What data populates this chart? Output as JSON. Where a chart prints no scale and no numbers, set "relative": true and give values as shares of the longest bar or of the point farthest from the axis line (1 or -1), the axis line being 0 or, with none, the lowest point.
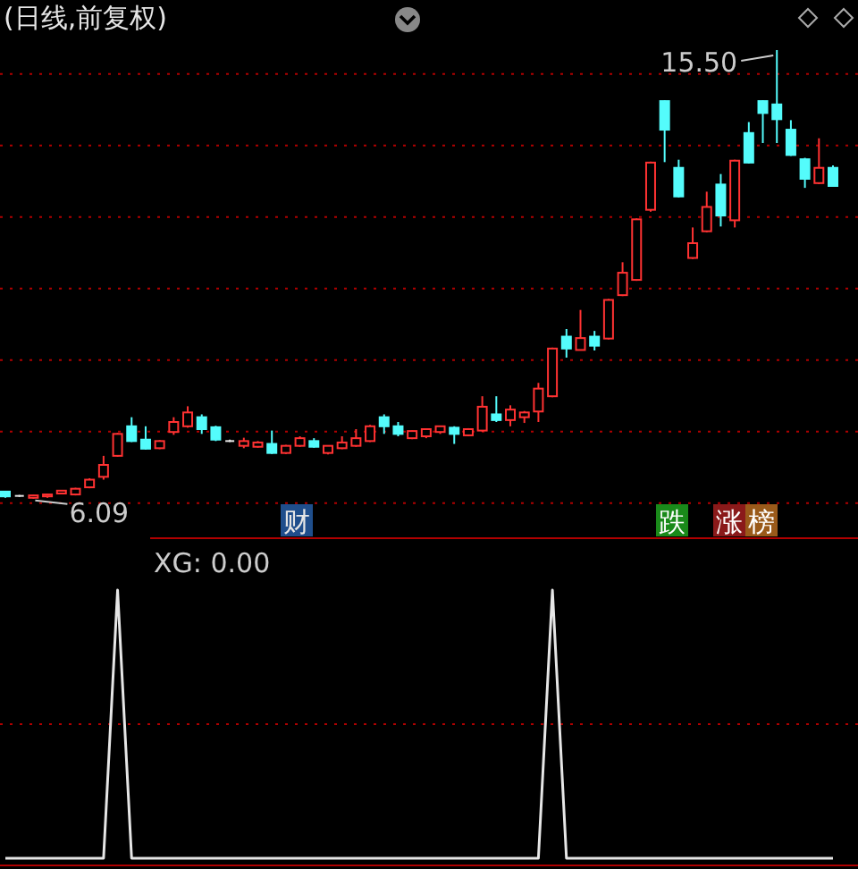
{
  "chart_data": [
    {
      "type": "candlestick",
      "title": "(日线,前复权)",
      "grid": true,
      "ylim": [
        5.3,
        16.55
      ],
      "yticks": [
        {
          "value": 15,
          "label": null
        },
        {
          "value": 13.5,
          "label": null
        },
        {
          "value": 12,
          "label": null
        },
        {
          "value": 10.5,
          "label": null
        },
        {
          "value": 9,
          "label": null
        },
        {
          "value": 7.5,
          "label": null
        },
        {
          "value": 6,
          "label": null
        }
      ],
      "categories": [
        null,
        null,
        null,
        null,
        null,
        null,
        null,
        null,
        null,
        null,
        null,
        null,
        null,
        null,
        null,
        null,
        null,
        null,
        null,
        null,
        null,
        null,
        null,
        null,
        null,
        null,
        null,
        null,
        null,
        null,
        null,
        null,
        null,
        null,
        null,
        null,
        null,
        null,
        null,
        null,
        null,
        null,
        null,
        null,
        null,
        null,
        null,
        null,
        null,
        null,
        null,
        null,
        null,
        null,
        null,
        null,
        null,
        null,
        null,
        null
      ],
      "ohlc": [
        [
          6.24,
          6.25,
          6.11,
          6.14
        ],
        [
          6.15,
          6.17,
          6.13,
          6.15
        ],
        [
          6.11,
          6.17,
          6.09,
          6.16
        ],
        [
          6.14,
          6.19,
          6.11,
          6.18
        ],
        [
          6.2,
          6.27,
          6.19,
          6.26
        ],
        [
          6.18,
          6.32,
          6.16,
          6.3
        ],
        [
          6.33,
          6.52,
          6.31,
          6.49
        ],
        [
          6.55,
          6.99,
          6.49,
          6.8
        ],
        [
          6.99,
          7.47,
          6.97,
          7.45
        ],
        [
          7.61,
          7.8,
          7.28,
          7.3
        ],
        [
          7.33,
          7.61,
          7.12,
          7.14
        ],
        [
          7.15,
          7.32,
          7.13,
          7.3
        ],
        [
          7.49,
          7.8,
          7.43,
          7.7
        ],
        [
          7.61,
          8.03,
          7.58,
          7.9
        ],
        [
          7.8,
          7.86,
          7.45,
          7.55
        ],
        [
          7.59,
          7.62,
          7.3,
          7.33
        ],
        [
          7.3,
          7.33,
          7.28,
          7.3
        ],
        [
          7.2,
          7.37,
          7.15,
          7.3
        ],
        [
          7.18,
          7.3,
          7.16,
          7.27
        ],
        [
          7.24,
          7.52,
          7.03,
          7.05
        ],
        [
          7.05,
          7.22,
          7.03,
          7.2
        ],
        [
          7.2,
          7.4,
          7.18,
          7.36
        ],
        [
          7.3,
          7.36,
          7.16,
          7.18
        ],
        [
          7.05,
          7.2,
          7.02,
          7.2
        ],
        [
          7.15,
          7.4,
          7.13,
          7.27
        ],
        [
          7.2,
          7.55,
          7.18,
          7.36
        ],
        [
          7.3,
          7.64,
          7.28,
          7.61
        ],
        [
          7.8,
          7.86,
          7.45,
          7.61
        ],
        [
          7.61,
          7.7,
          7.4,
          7.45
        ],
        [
          7.36,
          7.52,
          7.34,
          7.51
        ],
        [
          7.4,
          7.56,
          7.36,
          7.55
        ],
        [
          7.49,
          7.62,
          7.45,
          7.61
        ],
        [
          7.58,
          7.61,
          7.24,
          7.45
        ],
        [
          7.42,
          7.57,
          7.4,
          7.55
        ],
        [
          7.52,
          8.24,
          7.5,
          8.02
        ],
        [
          7.86,
          8.24,
          7.7,
          7.74
        ],
        [
          7.74,
          8.05,
          7.61,
          7.96
        ],
        [
          7.8,
          7.93,
          7.68,
          7.9
        ],
        [
          7.92,
          8.52,
          7.7,
          8.4
        ],
        [
          8.24,
          9.26,
          8.22,
          9.24
        ],
        [
          9.49,
          9.65,
          9.05,
          9.24
        ],
        [
          9.21,
          10.05,
          9.21,
          9.46
        ],
        [
          9.49,
          9.61,
          9.2,
          9.3
        ],
        [
          9.45,
          10.28,
          9.43,
          10.26
        ],
        [
          10.36,
          11.05,
          10.34,
          10.83
        ],
        [
          10.68,
          11.97,
          10.66,
          11.95
        ],
        [
          12.15,
          13.16,
          12.11,
          13.14
        ],
        [
          14.43,
          14.45,
          13.15,
          13.83
        ],
        [
          13.03,
          13.2,
          12.41,
          12.43
        ],
        [
          11.14,
          11.78,
          11.12,
          11.45
        ],
        [
          11.7,
          12.53,
          11.68,
          12.21
        ],
        [
          12.68,
          12.9,
          11.8,
          12.03
        ],
        [
          11.93,
          13.2,
          11.78,
          13.18
        ],
        [
          13.76,
          13.99,
          13.12,
          13.14
        ],
        [
          14.43,
          14.45,
          13.55,
          14.18
        ],
        [
          14.36,
          15.5,
          13.55,
          14.05
        ],
        [
          13.83,
          14.03,
          13.28,
          13.3
        ],
        [
          13.21,
          13.24,
          12.61,
          12.8
        ],
        [
          12.71,
          13.65,
          12.69,
          13.03
        ],
        [
          13.03,
          13.08,
          12.63,
          12.65
        ]
      ],
      "annotations": [
        "财",
        "跌",
        "涨",
        "榜",
        "15.50",
        "6.09"
      ]
    },
    {
      "type": "line",
      "title": "XG: 0.00",
      "relative": true,
      "color": "#e6e6e6",
      "ref_lines": [
        {
          "axis": "y",
          "value": 0.5,
          "color": "#b00000",
          "line_style": "dotted"
        }
      ],
      "categories": [
        null,
        null,
        null,
        null,
        null,
        null,
        null,
        null,
        null,
        null,
        null,
        null,
        null,
        null,
        null,
        null,
        null,
        null,
        null,
        null,
        null,
        null,
        null,
        null,
        null,
        null,
        null,
        null,
        null,
        null,
        null,
        null,
        null,
        null,
        null,
        null,
        null,
        null,
        null,
        null,
        null,
        null,
        null,
        null,
        null,
        null,
        null,
        null,
        null,
        null,
        null,
        null,
        null,
        null,
        null,
        null,
        null,
        null,
        null,
        null
      ],
      "values": [
        0,
        0,
        0,
        0,
        0,
        0,
        0,
        0,
        1,
        0,
        0,
        0,
        0,
        0,
        0,
        0,
        0,
        0,
        0,
        0,
        0,
        0,
        0,
        0,
        0,
        0,
        0,
        0,
        0,
        0,
        0,
        0,
        0,
        0,
        0,
        0,
        0,
        0,
        0,
        1,
        0,
        0,
        0,
        0,
        0,
        0,
        0,
        0,
        0,
        0,
        0,
        0,
        0,
        0,
        0,
        0,
        0,
        0,
        0,
        0
      ]
    }
  ]
}
